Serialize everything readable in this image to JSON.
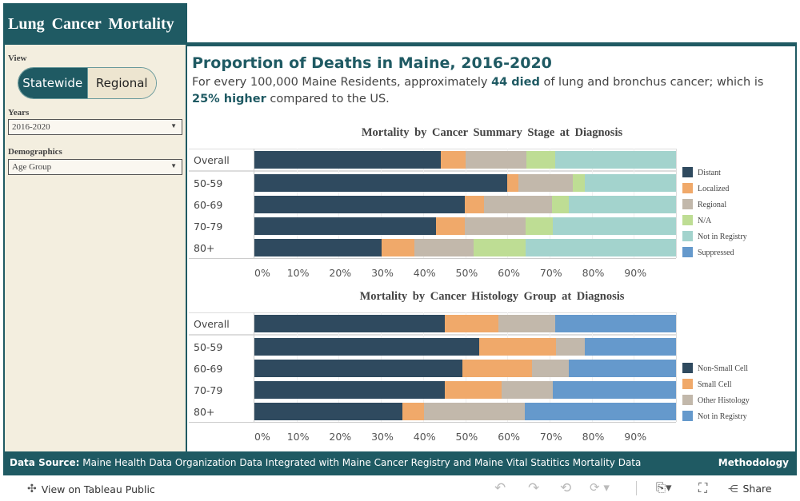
{
  "header": {
    "title": "Lung Cancer Mortality"
  },
  "sidebar": {
    "view_label": "View",
    "view_options": [
      "Statewide",
      "Regional"
    ],
    "view_selected": "Statewide",
    "years_label": "Years",
    "years_value": "2016-2020",
    "demographics_label": "Demographics",
    "demographics_value": "Age Group"
  },
  "main": {
    "title": "Proportion of Deaths in Maine, 2016-2020",
    "desc_1": "For every 100,000 Maine Residents, approximately ",
    "desc_bold_1": "44 died",
    "desc_2": " of lung and bronchus cancer; which is ",
    "desc_bold_2": "25% higher",
    "desc_3": " compared to the US."
  },
  "chart_data": [
    {
      "type": "bar",
      "title": "Mortality by Cancer Summary Stage at Diagnosis",
      "stacked": true,
      "orientation": "horizontal",
      "categories": [
        "Overall",
        "50-59",
        "60-69",
        "70-79",
        "80+"
      ],
      "xticks": [
        "0%",
        "10%",
        "20%",
        "30%",
        "40%",
        "50%",
        "60%",
        "70%",
        "80%",
        "90%"
      ],
      "xlim": [
        0,
        100
      ],
      "legend": "right",
      "series": [
        {
          "name": "Distant",
          "color": "#2f4a5f",
          "values": [
            44.2,
            59.9,
            49.9,
            43.0,
            30.2
          ]
        },
        {
          "name": "Localized",
          "color": "#f0a96a",
          "values": [
            5.8,
            2.7,
            4.6,
            6.9,
            7.8
          ]
        },
        {
          "name": "Regional",
          "color": "#c2b8ab",
          "values": [
            14.6,
            13.0,
            16.0,
            14.5,
            13.9
          ]
        },
        {
          "name": "N/A",
          "color": "#bedd94",
          "values": [
            6.7,
            2.8,
            4.1,
            6.4,
            12.5
          ]
        },
        {
          "name": "Not in Registry",
          "color": "#a3d3cd",
          "values": [
            28.7,
            21.6,
            25.4,
            29.2,
            35.6
          ]
        },
        {
          "name": "Suppressed",
          "color": "#6599cc",
          "values": [
            0,
            0,
            0,
            0,
            0
          ]
        }
      ]
    },
    {
      "type": "bar",
      "title": "Mortality by Cancer Histology Group at Diagnosis",
      "stacked": true,
      "orientation": "horizontal",
      "categories": [
        "Overall",
        "50-59",
        "60-69",
        "70-79",
        "80+"
      ],
      "xticks": [
        "0%",
        "10%",
        "20%",
        "30%",
        "40%",
        "50%",
        "60%",
        "70%",
        "80%",
        "90%"
      ],
      "xlim": [
        0,
        100
      ],
      "legend": "right",
      "series": [
        {
          "name": "Non-Small Cell",
          "color": "#2f4a5f",
          "values": [
            45.1,
            53.3,
            49.3,
            45.1,
            35.1
          ]
        },
        {
          "name": "Small Cell",
          "color": "#f0a96a",
          "values": [
            12.7,
            18.2,
            16.6,
            13.6,
            5.1
          ]
        },
        {
          "name": "Other Histology",
          "color": "#c2b8ab",
          "values": [
            13.5,
            6.8,
            8.7,
            12.0,
            24.0
          ]
        },
        {
          "name": "Not in Registry",
          "color": "#6599cc",
          "values": [
            28.7,
            21.7,
            25.4,
            29.3,
            35.8
          ]
        }
      ]
    }
  ],
  "footer": {
    "source_label": "Data Source:",
    "source_text": " Maine Health Data Organization Data Integrated with Maine Cancer Registry and Maine Vital Statitics Mortality Data",
    "methodology": "Methodology"
  },
  "toolbar": {
    "view_on": "View on Tableau Public",
    "share": "Share"
  }
}
